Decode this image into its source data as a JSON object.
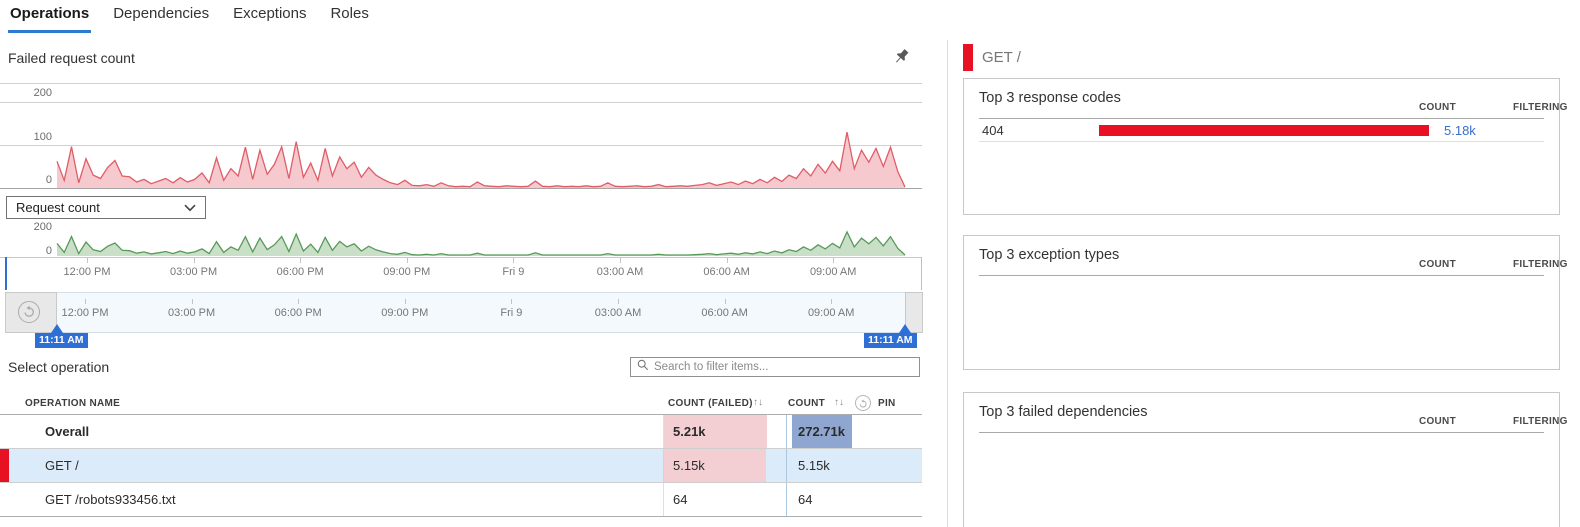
{
  "tabs": [
    {
      "label": "Operations",
      "active": true
    },
    {
      "label": "Dependencies",
      "active": false
    },
    {
      "label": "Exceptions",
      "active": false
    },
    {
      "label": "Roles",
      "active": false
    }
  ],
  "left": {
    "chart_title": "Failed request count",
    "failed_axis_labels": [
      "200",
      "100",
      "0"
    ],
    "request_axis_labels": [
      "200",
      "0"
    ],
    "metric_dropdown_value": "Request count",
    "x_ticks": [
      "12:00 PM",
      "03:00 PM",
      "06:00 PM",
      "09:00 PM",
      "Fri 9",
      "03:00 AM",
      "06:00 AM",
      "09:00 AM"
    ],
    "brush": {
      "start_time": "11:11 AM",
      "end_time": "11:11 AM"
    },
    "select_operation_label": "Select operation",
    "search_placeholder": "Search to filter items...",
    "table": {
      "headers": {
        "name": "OPERATION NAME",
        "failed": "COUNT (FAILED)",
        "count": "COUNT",
        "pin": "PIN",
        "sort_icon": "↑↓"
      },
      "rows": [
        {
          "name": "Overall",
          "failed": "5.21k",
          "count": "272.71k",
          "bold": true,
          "failed_bar_pct": 100,
          "count_bar_pct": 100,
          "selected": false,
          "accent": false
        },
        {
          "name": "GET /",
          "failed": "5.15k",
          "count": "5.15k",
          "bold": false,
          "failed_bar_pct": 99,
          "count_bar_pct": 0,
          "selected": true,
          "accent": true
        },
        {
          "name": "GET /robots933456.txt",
          "failed": "64",
          "count": "64",
          "bold": false,
          "failed_bar_pct": 0,
          "count_bar_pct": 0,
          "selected": false,
          "accent": false
        }
      ]
    }
  },
  "right": {
    "selected_operation": "GET /",
    "cards": [
      {
        "title": "Top 3 response codes",
        "count_label": "COUNT",
        "filtering_label": "FILTERING",
        "rows": [
          {
            "label": "404",
            "count": "5.18k",
            "bar_pct": 100
          }
        ]
      },
      {
        "title": "Top 3 exception types",
        "count_label": "COUNT",
        "filtering_label": "FILTERING",
        "rows": []
      },
      {
        "title": "Top 3 failed dependencies",
        "count_label": "COUNT",
        "filtering_label": "FILTERING",
        "rows": []
      }
    ]
  },
  "chart_data": [
    {
      "type": "area",
      "name": "Failed request count",
      "color": "#e05d67",
      "fill": "#f5c9ce",
      "ylim": [
        0,
        200
      ],
      "y_gridlines": [
        200,
        100,
        0
      ],
      "x_ticks": [
        "12:00 PM",
        "03:00 PM",
        "06:00 PM",
        "09:00 PM",
        "Fri 9",
        "03:00 AM",
        "06:00 AM",
        "09:00 AM"
      ],
      "values": [
        62,
        18,
        96,
        12,
        68,
        30,
        22,
        48,
        64,
        28,
        26,
        14,
        20,
        10,
        16,
        22,
        12,
        24,
        14,
        20,
        35,
        12,
        70,
        18,
        45,
        28,
        95,
        20,
        88,
        32,
        55,
        96,
        22,
        108,
        25,
        58,
        18,
        92,
        28,
        72,
        45,
        60,
        25,
        48,
        30,
        20,
        12,
        8,
        18,
        6,
        5,
        8,
        4,
        12,
        5,
        3,
        4,
        3,
        14,
        5,
        4,
        3,
        5,
        4,
        3,
        4,
        16,
        4,
        3,
        5,
        3,
        4,
        3,
        5,
        3,
        4,
        12,
        4,
        3,
        4,
        5,
        3,
        4,
        8,
        3,
        4,
        5,
        4,
        6,
        8,
        12,
        6,
        10,
        14,
        8,
        16,
        10,
        20,
        12,
        25,
        15,
        30,
        22,
        45,
        28,
        55,
        35,
        62,
        40,
        130,
        45,
        88,
        60,
        92,
        50,
        95,
        38,
        0
      ]
    },
    {
      "type": "area",
      "name": "Request count",
      "color": "#579a58",
      "fill": "#cadfc7",
      "ylim": [
        0,
        200
      ],
      "y_gridlines": [
        200,
        0
      ],
      "x_ticks": [
        "12:00 PM",
        "03:00 PM",
        "06:00 PM",
        "09:00 PM",
        "Fri 9",
        "03:00 AM",
        "06:00 AM",
        "09:00 AM"
      ],
      "values": [
        90,
        26,
        139,
        17,
        99,
        44,
        32,
        70,
        93,
        41,
        38,
        20,
        29,
        15,
        23,
        32,
        17,
        35,
        20,
        29,
        51,
        17,
        102,
        26,
        65,
        41,
        138,
        29,
        128,
        46,
        80,
        139,
        32,
        157,
        36,
        84,
        26,
        133,
        41,
        104,
        65,
        87,
        36,
        70,
        44,
        29,
        17,
        12,
        26,
        9,
        7,
        12,
        6,
        17,
        7,
        4,
        6,
        4,
        20,
        7,
        6,
        4,
        7,
        6,
        4,
        6,
        23,
        6,
        4,
        7,
        4,
        6,
        4,
        7,
        4,
        6,
        17,
        6,
        4,
        6,
        7,
        4,
        6,
        12,
        4,
        6,
        7,
        6,
        9,
        12,
        17,
        9,
        15,
        20,
        12,
        23,
        15,
        29,
        17,
        36,
        22,
        44,
        32,
        65,
        41,
        80,
        51,
        90,
        58,
        172,
        65,
        128,
        87,
        133,
        73,
        138,
        55,
        0
      ]
    }
  ],
  "colors": {
    "tab_underline": "#2f7ad1",
    "accent_blue": "#2e6fd6",
    "status_red": "#e81123",
    "link_blue": "#3a6fc9",
    "selected_row": "#dcebfa",
    "failed_cell_pink": "#f3cfd4",
    "count_bar_blue": "#8fa7d0"
  }
}
